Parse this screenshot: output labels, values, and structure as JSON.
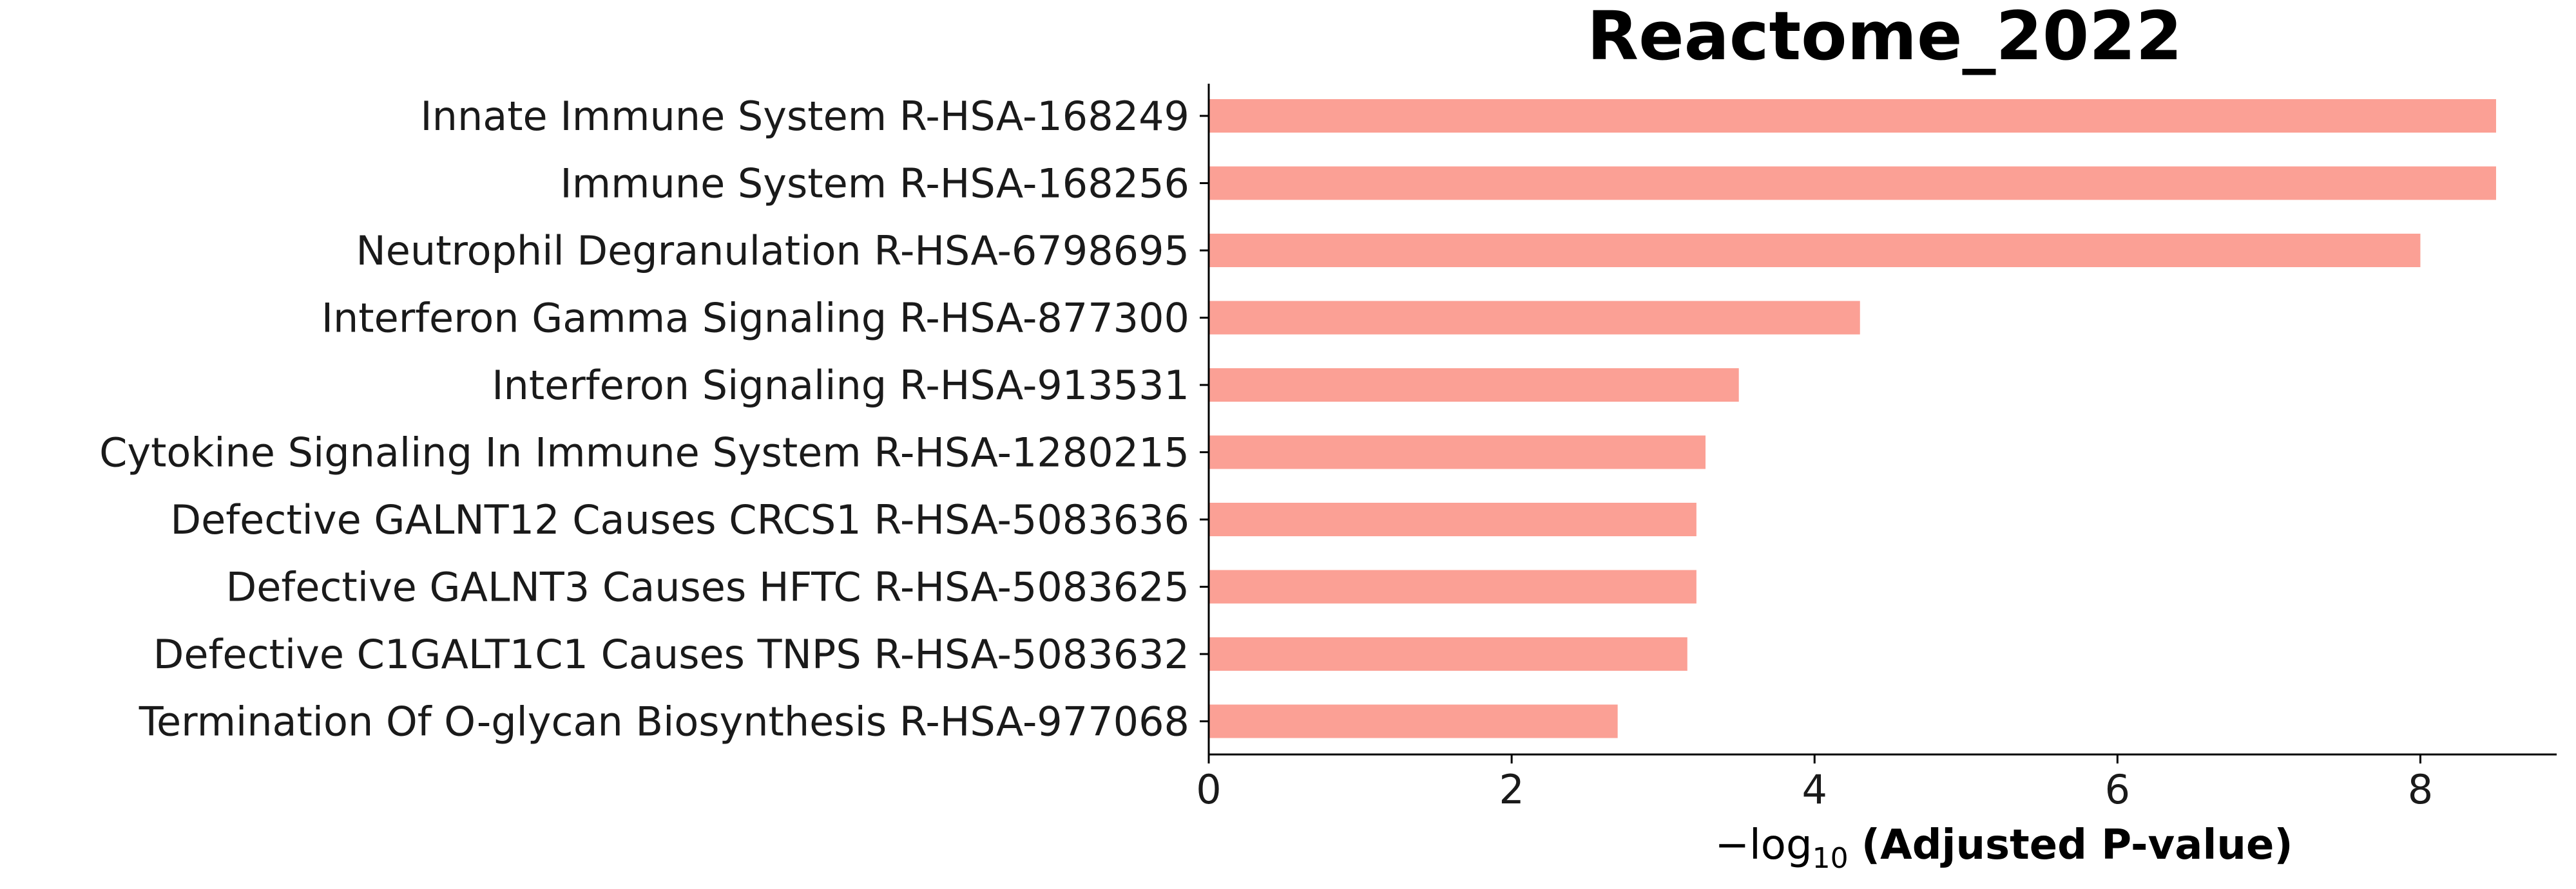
{
  "chart_data": {
    "type": "bar",
    "orientation": "horizontal",
    "title": "Reactome_2022",
    "xlabel_prefix": "−log",
    "xlabel_subscript": "10",
    "xlabel_main": "(Adjusted P-value)",
    "ylabel": "",
    "xlim": [
      0,
      8.9
    ],
    "xticks": [
      0,
      2,
      4,
      6,
      8
    ],
    "bar_color": "#fba095",
    "categories": [
      "Innate Immune System R-HSA-168249",
      "Immune System R-HSA-168256",
      "Neutrophil Degranulation R-HSA-6798695",
      "Interferon Gamma Signaling R-HSA-877300",
      "Interferon Signaling R-HSA-913531",
      "Cytokine Signaling In Immune System R-HSA-1280215",
      "Defective GALNT12 Causes CRCS1 R-HSA-5083636",
      "Defective GALNT3 Causes HFTC R-HSA-5083625",
      "Defective C1GALT1C1 Causes TNPS R-HSA-5083632",
      "Termination Of O-glycan Biosynthesis R-HSA-977068"
    ],
    "values": [
      8.5,
      8.5,
      8.0,
      4.3,
      3.5,
      3.28,
      3.22,
      3.22,
      3.16,
      2.7
    ],
    "grid": false,
    "legend": "none"
  }
}
